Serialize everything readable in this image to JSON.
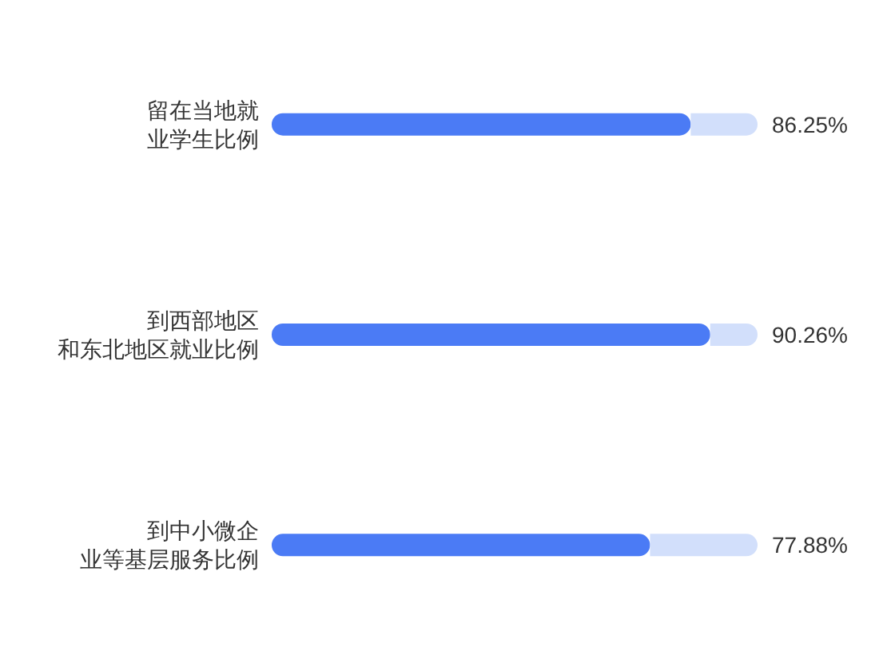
{
  "chart_data": {
    "type": "bar",
    "orientation": "horizontal",
    "stacked": true,
    "categories": [
      "留在当地就业学生比例",
      "到西部地区和东北地区就业比例",
      "到中小微企业等基层服务比例"
    ],
    "series": [
      {
        "color": "#4b7bf5",
        "values": [
          86.25,
          90.26,
          77.88
        ],
        "value_labels": [
          "86.25%",
          "90.26%",
          "77.88%"
        ]
      },
      {
        "color": "#d2dffb",
        "values": [
          13.75,
          9.74,
          22.12
        ]
      }
    ],
    "xlim": [
      0,
      100
    ],
    "tick_labels": "y"
  }
}
